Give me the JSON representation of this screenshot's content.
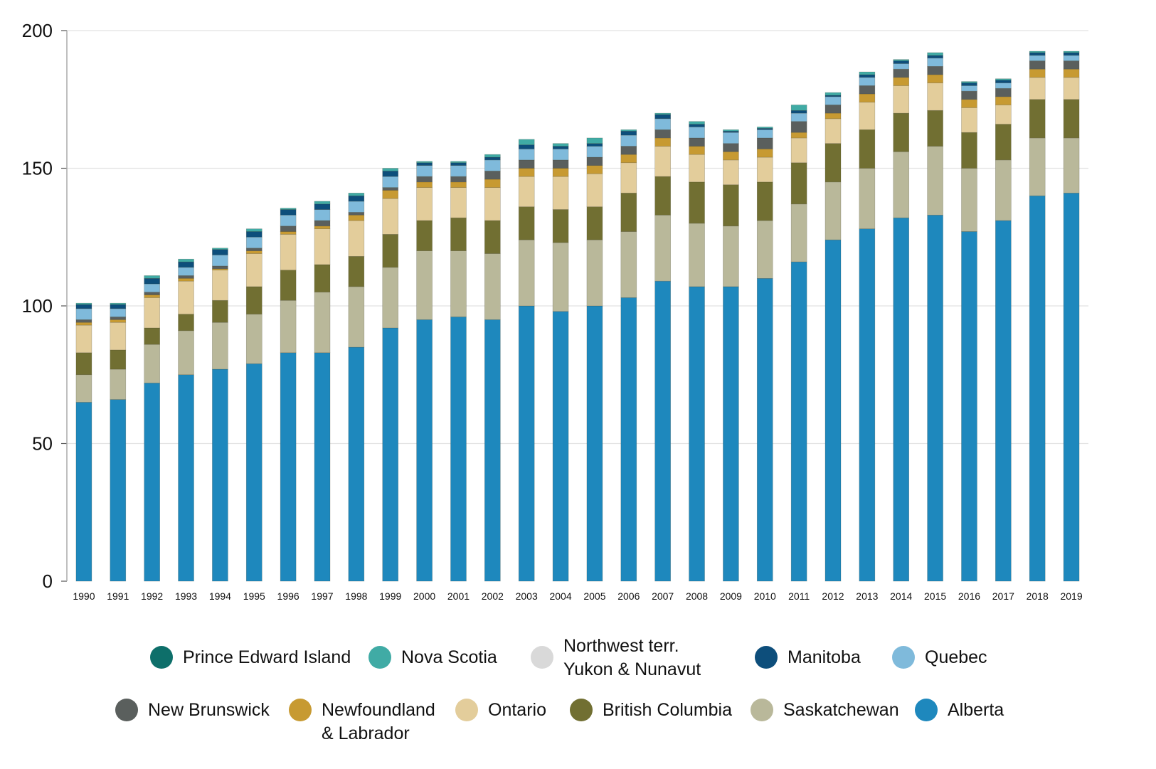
{
  "chart_data": {
    "type": "bar",
    "stacked": true,
    "title": "",
    "xlabel": "",
    "ylabel": "",
    "ylim": [
      0,
      200
    ],
    "yticks": [
      0,
      50,
      100,
      150,
      200
    ],
    "grid": true,
    "legend_position": "bottom",
    "categories": [
      "1990",
      "1991",
      "1992",
      "1993",
      "1994",
      "1995",
      "1996",
      "1997",
      "1998",
      "1999",
      "2000",
      "2001",
      "2002",
      "2003",
      "2004",
      "2005",
      "2006",
      "2007",
      "2008",
      "2009",
      "2010",
      "2011",
      "2012",
      "2013",
      "2014",
      "2015",
      "2016",
      "2017",
      "2018",
      "2019"
    ],
    "series": [
      {
        "name": "Alberta",
        "color": "#1e88bd",
        "values": [
          65,
          66,
          72,
          75,
          77,
          79,
          83,
          83,
          85,
          92,
          95,
          96,
          95,
          100,
          98,
          100,
          103,
          109,
          107,
          107,
          110,
          116,
          124,
          128,
          132,
          133,
          127,
          131,
          140,
          141
        ]
      },
      {
        "name": "Saskatchewan",
        "color": "#b9b89a",
        "values": [
          10,
          11,
          14,
          16,
          17,
          18,
          19,
          22,
          22,
          22,
          25,
          24,
          24,
          24,
          25,
          24,
          24,
          24,
          23,
          22,
          21,
          21,
          21,
          22,
          24,
          25,
          23,
          22,
          21,
          20
        ]
      },
      {
        "name": "British Columbia",
        "color": "#716f32",
        "values": [
          8,
          7,
          6,
          6,
          8,
          10,
          11,
          10,
          11,
          12,
          11,
          12,
          12,
          12,
          12,
          12,
          14,
          14,
          15,
          15,
          14,
          15,
          14,
          14,
          14,
          13,
          13,
          13,
          14,
          14
        ]
      },
      {
        "name": "Ontario",
        "color": "#e3cd9b",
        "values": [
          10,
          10,
          11,
          12,
          11,
          12,
          13,
          13,
          13,
          13,
          12,
          11,
          12,
          11,
          12,
          12,
          11,
          11,
          10,
          9,
          9,
          9,
          9,
          10,
          10,
          10,
          9,
          7,
          8,
          8
        ]
      },
      {
        "name": "Newfoundland & Labrador",
        "color": "#c79a32",
        "values": [
          1,
          1,
          1,
          1,
          0.5,
          1,
          1,
          1,
          2,
          3,
          2,
          2,
          3,
          3,
          3,
          3,
          3,
          3,
          3,
          3,
          3,
          2,
          2,
          3,
          3,
          3,
          3,
          3,
          3,
          3
        ]
      },
      {
        "name": "New Brunswick",
        "color": "#5a5f5d",
        "values": [
          1,
          1,
          1,
          1,
          1,
          1,
          2,
          2,
          1,
          1,
          2,
          2,
          3,
          3,
          3,
          3,
          3,
          3,
          3,
          3,
          4,
          4,
          3,
          3,
          3,
          3,
          3,
          3,
          3,
          3
        ]
      },
      {
        "name": "Quebec",
        "color": "#7fbadb",
        "values": [
          4,
          3,
          3,
          3,
          4,
          4,
          4,
          4,
          4,
          4,
          4,
          4,
          4,
          4,
          4,
          4,
          4,
          4,
          4,
          4,
          3,
          3,
          3,
          3,
          2,
          3,
          2,
          2,
          2,
          2
        ]
      },
      {
        "name": "Manitoba",
        "color": "#0d4e7b",
        "values": [
          1.5,
          1.5,
          2,
          2,
          2,
          2,
          2,
          2,
          2,
          2,
          1,
          1,
          1,
          1.5,
          1,
          1,
          1.5,
          1.5,
          1,
          0.5,
          0.5,
          1,
          0.5,
          1,
          1,
          1,
          1,
          1,
          1,
          1
        ]
      },
      {
        "name": "Nova Scotia",
        "color": "#40aba5",
        "values": [
          0.5,
          0.5,
          1,
          1,
          0.5,
          1,
          0.5,
          1,
          1,
          1,
          0.5,
          0.5,
          1,
          2,
          1,
          2,
          0.5,
          0.5,
          1,
          0.5,
          0.5,
          2,
          1,
          1,
          0.5,
          1,
          0.5,
          0.5,
          0.5,
          0.5
        ]
      },
      {
        "name": "Prince Edward Island",
        "color": "#0e6f6a",
        "values": [
          0,
          0,
          0,
          0,
          0,
          0,
          0,
          0,
          0,
          0,
          0,
          0,
          0,
          0,
          0,
          0,
          0,
          0,
          0,
          0,
          0,
          0,
          0,
          0,
          0,
          0,
          0,
          0,
          0,
          0
        ]
      },
      {
        "name": "Northwest terr. Yukon & Nunavut",
        "color": "#d9d9d9",
        "values": [
          0,
          0,
          0,
          0,
          0,
          0,
          0,
          0,
          0,
          0,
          0,
          0,
          0,
          0,
          0,
          0,
          0,
          0,
          0,
          0,
          0,
          0,
          0,
          0,
          0,
          0,
          0,
          0,
          0,
          0
        ]
      }
    ]
  },
  "legend": {
    "row1": [
      {
        "label": "Prince Edward Island",
        "color": "#0e6f6a"
      },
      {
        "label": "Nova Scotia",
        "color": "#40aba5"
      },
      {
        "label": "Northwest terr.\nYukon & Nunavut",
        "color": "#d9d9d9"
      },
      {
        "label": "Manitoba",
        "color": "#0d4e7b"
      },
      {
        "label": "Quebec",
        "color": "#7fbadb"
      }
    ],
    "row2": [
      {
        "label": "New Brunswick",
        "color": "#5a5f5d"
      },
      {
        "label": "Newfoundland\n& Labrador",
        "color": "#c79a32"
      },
      {
        "label": "Ontario",
        "color": "#e3cd9b"
      },
      {
        "label": "British Columbia",
        "color": "#716f32"
      },
      {
        "label": "Saskatchewan",
        "color": "#b9b89a"
      },
      {
        "label": "Alberta",
        "color": "#1e88bd"
      }
    ]
  }
}
